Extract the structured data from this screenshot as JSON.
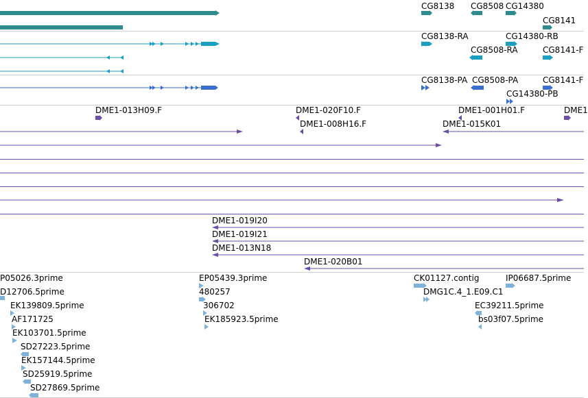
{
  "colors": {
    "gene": "#2f8c8c",
    "transcript": "#1a9fbf",
    "protein": "#3a6fcf",
    "bac": "#6a4fa8",
    "est": "#7fb2d8",
    "separator": "#cfcfcf"
  },
  "tracks": {
    "genes": {
      "labels": [
        "CG8138",
        "CG8508",
        "CG14380",
        "CG8141"
      ]
    },
    "transcripts": {
      "labels": [
        "CG8138-RA",
        "CG14380-RB",
        "CG8508-RA",
        "CG8141-F"
      ]
    },
    "proteins": {
      "labels": [
        "CG8138-PA",
        "CG8508-PA",
        "CG8141-F",
        "CG14380-PB"
      ]
    },
    "bac_ends": {
      "labels": [
        "DME1-013H09.F",
        "DME1-020F10.F",
        "DME1-001H01.F",
        "DME1",
        "DME1-008H16.F",
        "DME1-015K01"
      ]
    },
    "bac_clones": {
      "labels": [
        "DME1-019I20",
        "DME1-019I21",
        "DME1-013N18",
        "DME1-020B01"
      ]
    },
    "ests": {
      "labels": [
        "P05026.3prime",
        "D12706.5prime",
        "EK139809.5prime",
        "AF171725",
        "EK103701.5prime",
        "SD27223.5prime",
        "EK157144.5prime",
        "SD25919.5prime",
        "SD27869.5prime",
        "EP05439.3prime",
        "480257",
        "306702",
        "EK185923.5prime",
        "CK01127.contig",
        "DMG1C.4_1.E09.C1",
        "IP06687.5prime",
        "EC39211.5prime",
        "bs03f07.5prime"
      ]
    }
  }
}
